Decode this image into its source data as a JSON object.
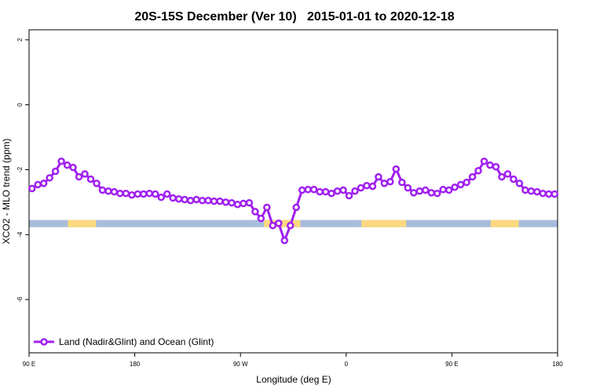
{
  "chart_data": {
    "type": "line",
    "title": "20S-15S December (Ver 10)   2015-01-01 to 2020-12-18",
    "x_label": "Longitude (deg E)",
    "y_label": "XCO2 - MLO trend (ppm)",
    "xlim": [
      90,
      540
    ],
    "ylim": [
      -7.64,
      2.31
    ],
    "xticks": [
      {
        "value": 90,
        "label": "90 E"
      },
      180,
      {
        "value": 270,
        "label": "90 W"
      },
      {
        "value": 360,
        "label": "0"
      },
      {
        "value": 450,
        "label": "90 E"
      },
      {
        "value": 540,
        "label": "180"
      }
    ],
    "yticks": [
      2,
      0,
      -2,
      -4,
      -6
    ],
    "legend": "bottom-left",
    "surface_band": {
      "y": [
        -3.77,
        -3.55
      ],
      "color": "#a7bcdc",
      "land_color": "#fcd97f",
      "land_ranges": [
        [
          123,
          147
        ],
        [
          290,
          321
        ],
        [
          373,
          411
        ],
        [
          483,
          507
        ]
      ]
    },
    "x": [
      92.5,
      97.5,
      102.5,
      107.5,
      112.5,
      117.5,
      122.5,
      127.5,
      132.5,
      137.5,
      142.5,
      147.5,
      152.5,
      157.5,
      162.5,
      167.5,
      172.5,
      177.5,
      182.5,
      187.5,
      192.5,
      197.5,
      202.5,
      207.5,
      212.5,
      217.5,
      222.5,
      227.5,
      232.5,
      237.5,
      242.5,
      247.5,
      252.5,
      257.5,
      262.5,
      267.5,
      272.5,
      277.5,
      282.5,
      287.5,
      292.5,
      297.5,
      302.5,
      307.5,
      312.5,
      317.5,
      322.5,
      327.5,
      332.5,
      337.5,
      342.5,
      347.5,
      352.5,
      357.5,
      362.5,
      367.5,
      372.5,
      377.5,
      382.5,
      387.5,
      392.5,
      397.5,
      402.5,
      407.5,
      412.5,
      417.5,
      422.5,
      427.5,
      432.5,
      437.5,
      442.5,
      447.5,
      452.5,
      457.5,
      462.5,
      467.5,
      472.5,
      477.5,
      482.5,
      487.5,
      492.5,
      497.5,
      502.5,
      507.5,
      512.5,
      517.5,
      522.5,
      527.5,
      532.5,
      537.5
    ],
    "series": [
      {
        "name": "Land (Nadir&Glint) and Ocean (Glint)",
        "color": "#a020f0",
        "values": [
          -2.58,
          -2.46,
          -2.42,
          -2.25,
          -2.05,
          -1.74,
          -1.86,
          -1.93,
          -2.22,
          -2.13,
          -2.29,
          -2.42,
          -2.63,
          -2.66,
          -2.68,
          -2.73,
          -2.73,
          -2.78,
          -2.75,
          -2.75,
          -2.73,
          -2.75,
          -2.85,
          -2.75,
          -2.87,
          -2.9,
          -2.92,
          -2.95,
          -2.92,
          -2.95,
          -2.95,
          -2.97,
          -2.97,
          -3.0,
          -3.02,
          -3.07,
          -3.04,
          -3.02,
          -3.29,
          -3.5,
          -3.16,
          -3.72,
          -3.65,
          -4.18,
          -3.72,
          -3.16,
          -2.63,
          -2.61,
          -2.61,
          -2.68,
          -2.68,
          -2.73,
          -2.66,
          -2.63,
          -2.8,
          -2.66,
          -2.56,
          -2.49,
          -2.51,
          -2.22,
          -2.42,
          -2.37,
          -1.98,
          -2.39,
          -2.56,
          -2.71,
          -2.66,
          -2.63,
          -2.71,
          -2.73,
          -2.61,
          -2.63,
          -2.54,
          -2.46,
          -2.39,
          -2.22,
          -2.03,
          -1.74,
          -1.86,
          -1.91,
          -2.22,
          -2.13,
          -2.29,
          -2.42,
          -2.63,
          -2.66,
          -2.68,
          -2.73,
          -2.75,
          -2.75
        ]
      }
    ]
  }
}
